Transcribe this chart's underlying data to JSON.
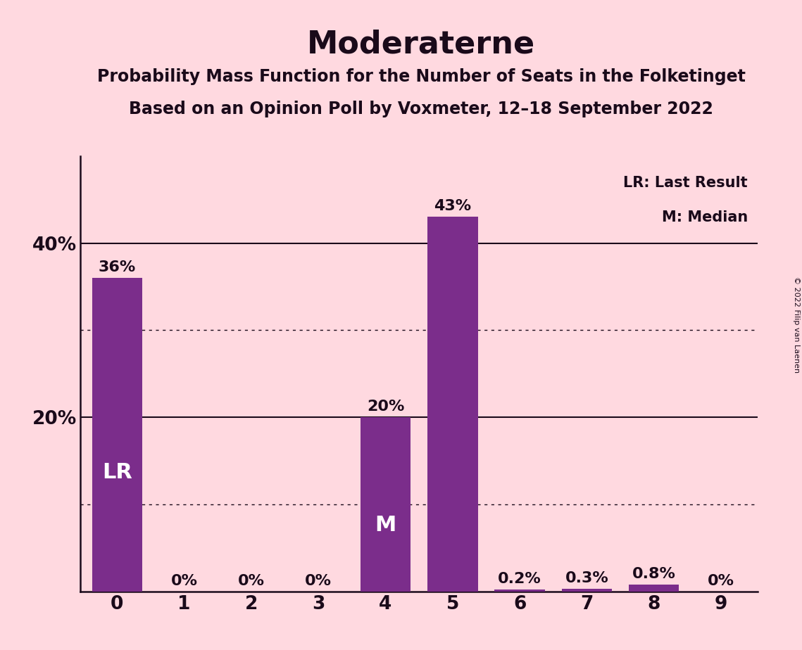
{
  "title": "Moderaterne",
  "subtitle1": "Probability Mass Function for the Number of Seats in the Folketinget",
  "subtitle2": "Based on an Opinion Poll by Voxmeter, 12–18 September 2022",
  "copyright": "© 2022 Filip van Laenen",
  "legend_lr": "LR: Last Result",
  "legend_m": "M: Median",
  "categories": [
    0,
    1,
    2,
    3,
    4,
    5,
    6,
    7,
    8,
    9
  ],
  "values": [
    0.36,
    0.0,
    0.0,
    0.0,
    0.2,
    0.43,
    0.002,
    0.003,
    0.008,
    0.0
  ],
  "bar_color": "#7B2D8B",
  "background_color": "#FFD9E0",
  "text_color": "#1a0a1a",
  "bar_labels": [
    "36%",
    "0%",
    "0%",
    "0%",
    "20%",
    "43%",
    "0.2%",
    "0.3%",
    "0.8%",
    "0%"
  ],
  "lr_bar_index": 0,
  "median_bar_index": 4,
  "ylim": [
    0,
    0.5
  ],
  "yticks": [
    0.0,
    0.2,
    0.4
  ],
  "ytick_labels": [
    "",
    "20%",
    "40%"
  ],
  "solid_gridlines": [
    0.2,
    0.4
  ],
  "dotted_gridlines": [
    0.1,
    0.3
  ],
  "title_fontsize": 32,
  "subtitle_fontsize": 17,
  "label_fontsize": 16,
  "axis_fontsize": 19,
  "marker_fontsize": 22,
  "legend_fontsize": 15
}
